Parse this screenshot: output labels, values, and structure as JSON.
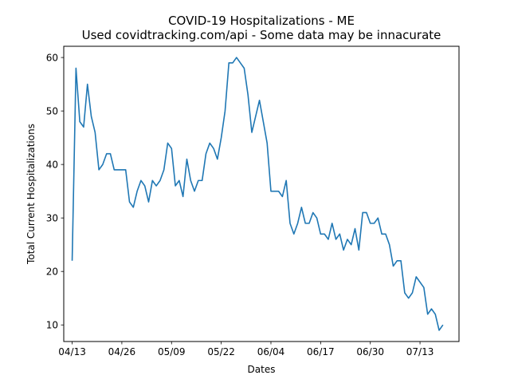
{
  "chart_data": {
    "type": "line",
    "title": "COVID-19 Hospitalizations - ME",
    "subtitle": "Used covidtracking.com/api - Some data may be innacurate",
    "xlabel": "Dates",
    "ylabel": "Total Current Hospitalizations",
    "x_tick_labels": [
      "04/13",
      "04/26",
      "05/09",
      "05/22",
      "06/04",
      "06/17",
      "06/30",
      "07/13"
    ],
    "y_ticks": [
      10,
      20,
      30,
      40,
      50,
      60
    ],
    "xlim": [
      -2.2,
      101.2
    ],
    "ylim": [
      6.9,
      62.1
    ],
    "grid": false,
    "line_color": "#1f77b4",
    "series": [
      {
        "values": [
          22,
          58,
          48,
          47,
          55,
          49,
          46,
          39,
          40,
          42,
          42,
          39,
          39,
          39,
          39,
          33,
          32,
          35,
          37,
          36,
          33,
          37,
          36,
          37,
          39,
          44,
          43,
          36,
          37,
          34,
          41,
          37,
          35,
          37,
          37,
          42,
          44,
          43,
          41,
          45,
          50,
          59,
          59,
          60,
          59,
          58,
          53,
          46,
          49,
          52,
          48,
          44,
          35,
          35,
          35,
          34,
          37,
          29,
          27,
          29,
          32,
          29,
          29,
          31,
          30,
          27,
          27,
          26,
          29,
          26,
          27,
          24,
          26,
          25,
          28,
          24,
          31,
          31,
          29,
          29,
          30,
          27,
          27,
          25,
          21,
          22,
          22,
          16,
          15,
          16,
          19,
          18,
          17,
          12,
          13,
          12,
          9,
          10
        ]
      }
    ]
  }
}
